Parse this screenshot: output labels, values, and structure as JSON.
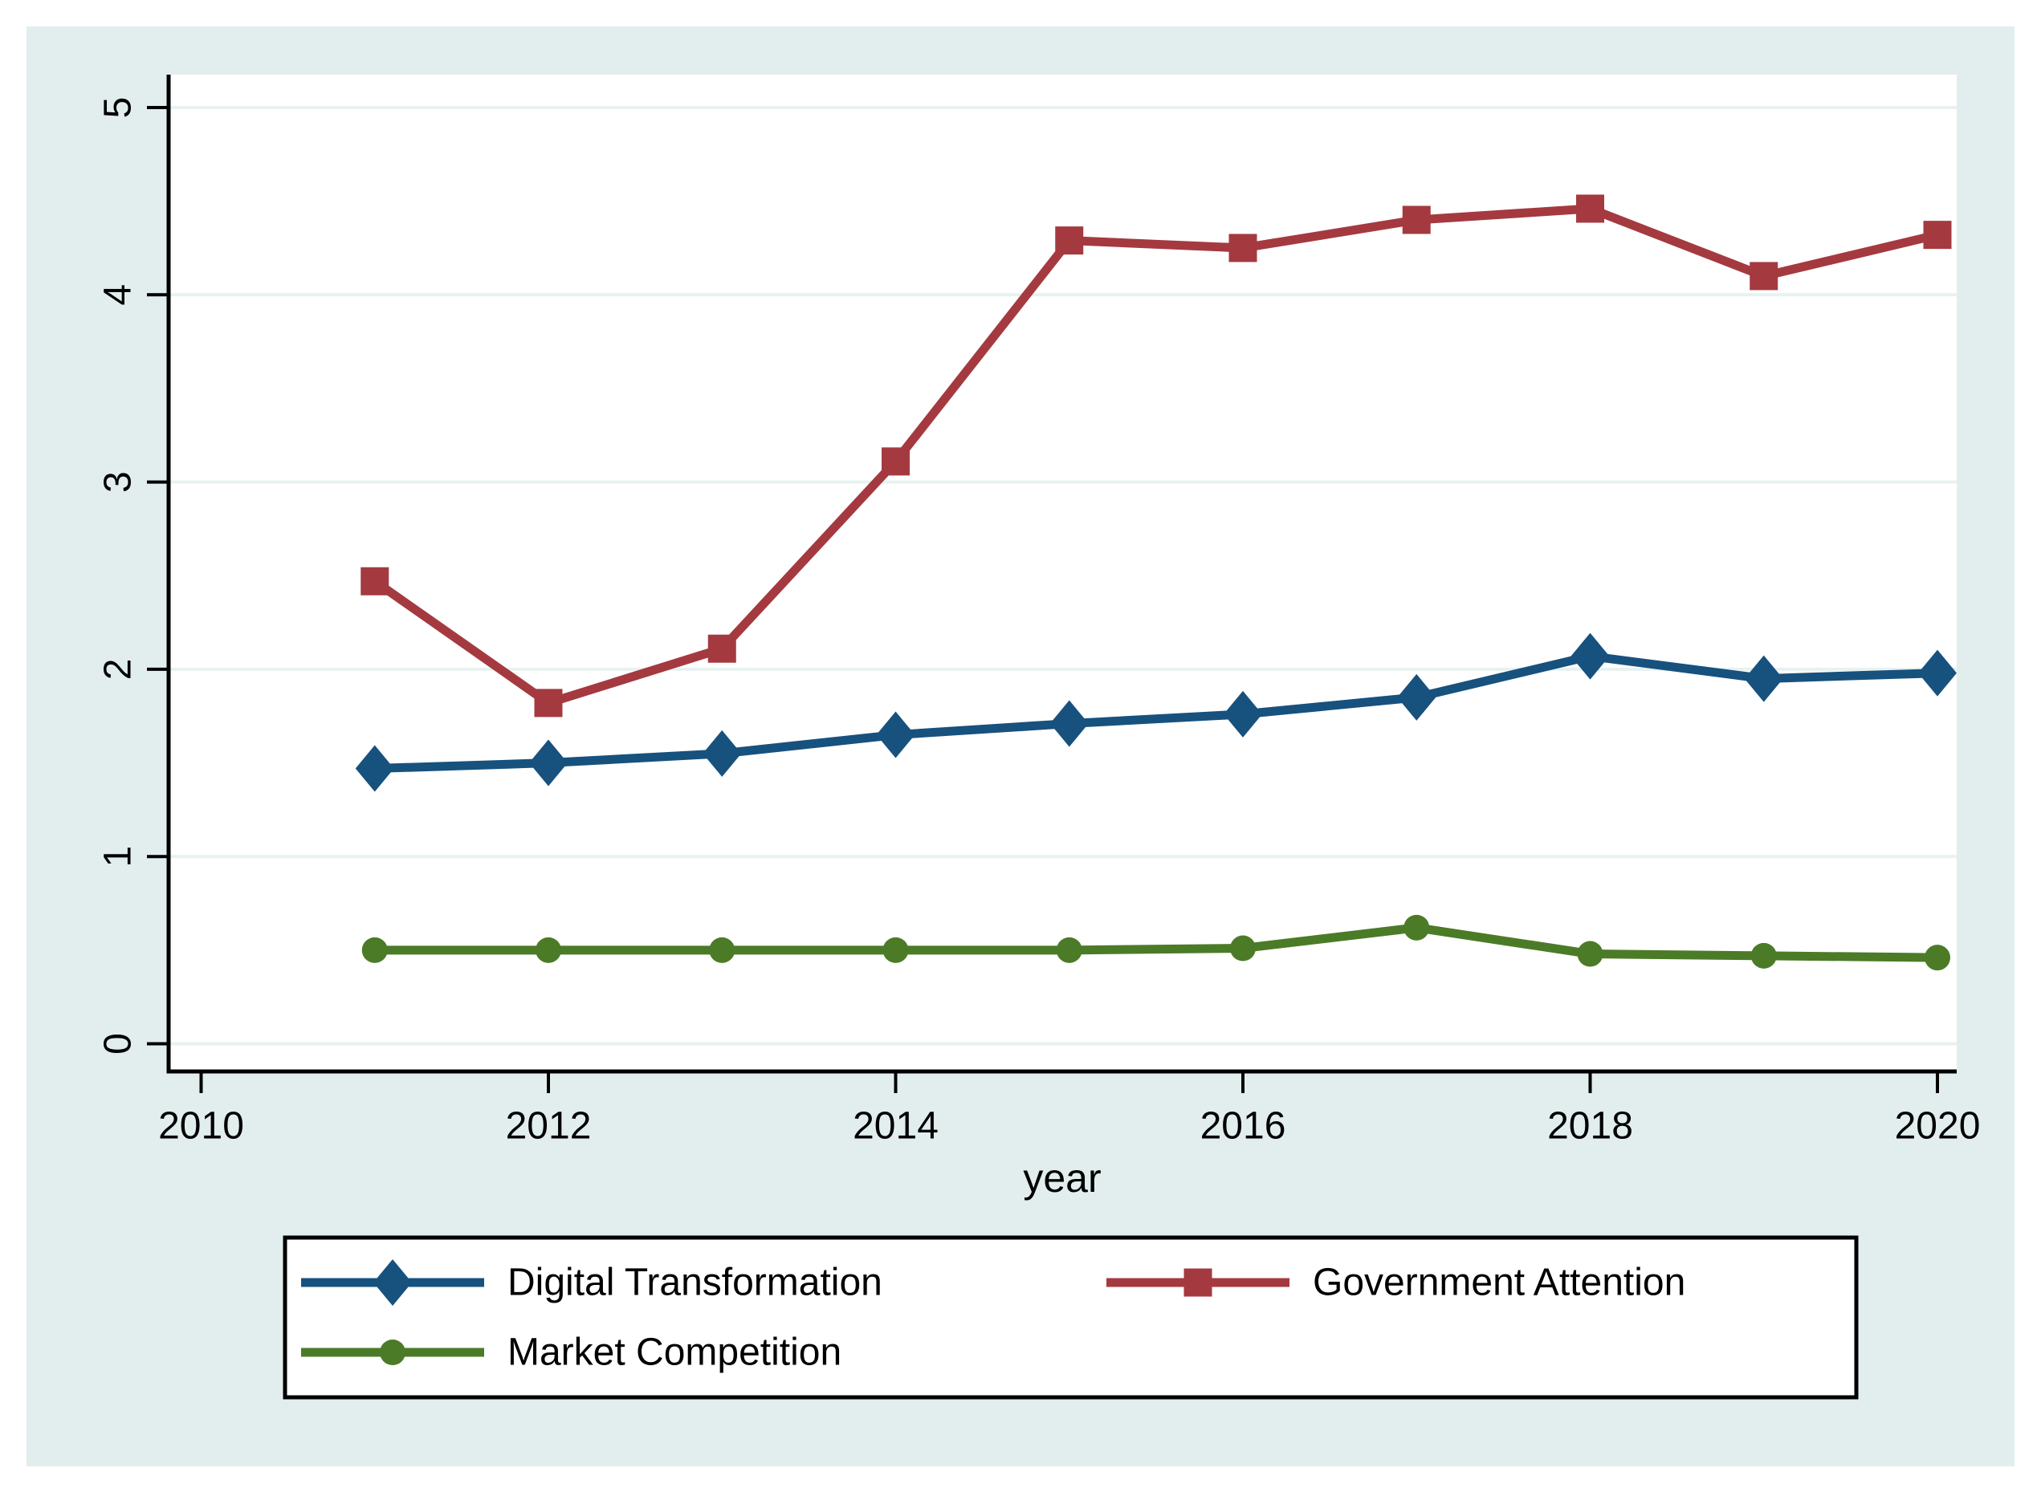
{
  "figure": {
    "background_color": "#e1eeed",
    "plot_background_color": "#ffffff",
    "gridline_color": "#e7f2f1",
    "axis_color": "#000000",
    "legend_border_color": "#000000",
    "legend_background_color": "#ffffff"
  },
  "chart_data": {
    "type": "line",
    "title": "",
    "xlabel": "year",
    "ylabel": "",
    "x": [
      2011,
      2012,
      2013,
      2014,
      2015,
      2016,
      2017,
      2018,
      2019,
      2020
    ],
    "x_tick_labels": [
      "2010",
      "2012",
      "2014",
      "2016",
      "2018",
      "2020"
    ],
    "x_ticks": [
      2010,
      2012,
      2014,
      2016,
      2018,
      2020
    ],
    "y_tick_labels": [
      "0",
      "1",
      "2",
      "3",
      "4",
      "5"
    ],
    "y_ticks": [
      0,
      1,
      2,
      3,
      4,
      5
    ],
    "xlim": [
      2009.8,
      2020.1
    ],
    "ylim": [
      -0.15,
      5.18
    ],
    "grid": true,
    "legend_position": "bottom",
    "series": [
      {
        "name": "Digital Transformation",
        "marker": "diamond",
        "color": "#17517e",
        "values": [
          1.47,
          1.5,
          1.55,
          1.65,
          1.71,
          1.76,
          1.85,
          2.07,
          1.95,
          1.98
        ]
      },
      {
        "name": "Government Attention",
        "marker": "square",
        "color": "#a43a40",
        "values": [
          2.47,
          1.82,
          2.11,
          3.11,
          4.29,
          4.25,
          4.4,
          4.46,
          4.1,
          4.32
        ]
      },
      {
        "name": "Market Competition",
        "marker": "circle",
        "color": "#4b7b27",
        "values": [
          0.5,
          0.5,
          0.5,
          0.5,
          0.5,
          0.51,
          0.62,
          0.48,
          0.47,
          0.46
        ]
      }
    ],
    "legend_entries": [
      "Digital Transformation",
      "Government Attention",
      "Market Competition"
    ]
  }
}
